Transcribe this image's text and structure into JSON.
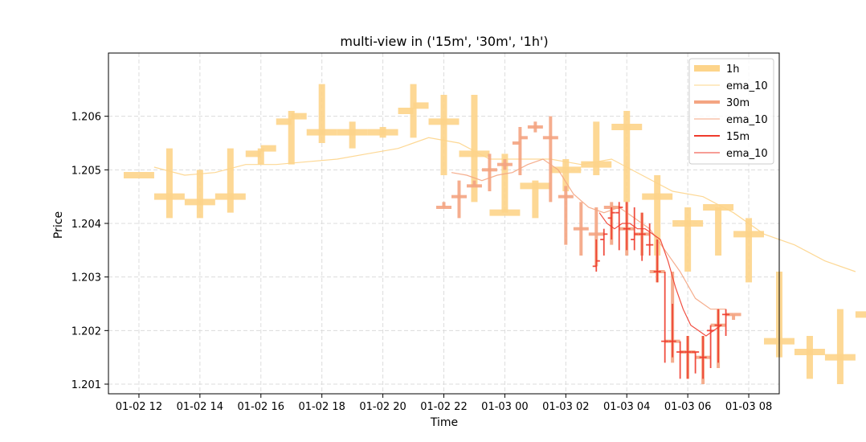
{
  "chart_data": {
    "type": "candlestick-line",
    "title": "multi-view in ('15m', '30m', '1h')",
    "xlabel": "Time",
    "ylabel": "Price",
    "x_tick_labels": [
      "01-02 12",
      "01-02 14",
      "01-02 16",
      "01-02 18",
      "01-02 20",
      "01-02 22",
      "01-03 00",
      "01-03 02",
      "01-03 04",
      "01-03 06",
      "01-03 08"
    ],
    "x_ticks_hours": [
      0,
      2,
      4,
      6,
      8,
      10,
      12,
      14,
      16,
      18,
      20
    ],
    "x_origin": "01-02 12:00",
    "y_ticks": [
      1.201,
      1.202,
      1.203,
      1.204,
      1.205,
      1.206
    ],
    "y_tick_labels": [
      "1.201",
      "1.202",
      "1.203",
      "1.204",
      "1.205",
      "1.206"
    ],
    "xlim_hours": [
      -1.0,
      21.0
    ],
    "ylim": [
      1.20082,
      1.20718
    ],
    "grid": true,
    "legend_position": "top-right",
    "series": [
      {
        "name": "1h",
        "color": "#fdd48a",
        "ohlc": [
          [
            0,
            1.2049,
            1.2049,
            1.2049,
            1.2049
          ],
          [
            1,
            1.2045,
            1.2054,
            1.2041,
            1.2045
          ],
          [
            2,
            1.2044,
            1.205,
            1.2041,
            1.2044
          ],
          [
            3,
            1.2045,
            1.2054,
            1.2042,
            1.2045
          ],
          [
            4,
            1.2053,
            1.2054,
            1.2051,
            1.2054
          ],
          [
            5,
            1.2059,
            1.2061,
            1.2051,
            1.206
          ],
          [
            6,
            1.2057,
            1.2066,
            1.2055,
            1.2057
          ],
          [
            7,
            1.2057,
            1.2059,
            1.2054,
            1.2057
          ],
          [
            8,
            1.2057,
            1.2058,
            1.2056,
            1.2057
          ],
          [
            9,
            1.2061,
            1.2066,
            1.2056,
            1.2062
          ],
          [
            10,
            1.2059,
            1.2064,
            1.2049,
            1.2059
          ],
          [
            11,
            1.2053,
            1.2064,
            1.2044,
            1.2053
          ],
          [
            12,
            1.2042,
            1.2053,
            1.2042,
            1.2042
          ],
          [
            13,
            1.2047,
            1.2048,
            1.2041,
            1.2047
          ],
          [
            14,
            1.205,
            1.2052,
            1.2046,
            1.205
          ],
          [
            15,
            1.2051,
            1.2059,
            1.2049,
            1.2051
          ],
          [
            16,
            1.2058,
            1.2061,
            1.2044,
            1.2058
          ],
          [
            17,
            1.2045,
            1.2049,
            1.2034,
            1.2045
          ],
          [
            18,
            1.204,
            1.2043,
            1.2031,
            1.204
          ],
          [
            19,
            1.2043,
            1.2043,
            1.2034,
            1.2043
          ],
          [
            20,
            1.2038,
            1.2041,
            1.2029,
            1.2038
          ],
          [
            21,
            1.2018,
            1.2031,
            1.2015,
            1.2018
          ],
          [
            22,
            1.2016,
            1.2019,
            1.2011,
            1.2016
          ],
          [
            23,
            1.2015,
            1.2024,
            1.201,
            1.2015
          ],
          [
            24,
            1.2023,
            1.2024,
            1.2021,
            1.2023
          ]
        ]
      },
      {
        "name": "ema_10",
        "color": "#fdd48a",
        "x": [
          0.5,
          1.5,
          2.5,
          3.5,
          4.5,
          5.5,
          6.5,
          7.5,
          8.5,
          9.5,
          10.5,
          11.5,
          12.5,
          13.5,
          14.5,
          15.5,
          16.5,
          17.5,
          18.5,
          19.5,
          20.5,
          21.5,
          22.5,
          23.5
        ],
        "y": [
          1.20505,
          1.2049,
          1.20495,
          1.2051,
          1.2051,
          1.20515,
          1.2052,
          1.2053,
          1.2054,
          1.2056,
          1.2055,
          1.2052,
          1.2052,
          1.2052,
          1.2051,
          1.2052,
          1.2049,
          1.2046,
          1.2045,
          1.2042,
          1.2038,
          1.2036,
          1.2033,
          1.2031
        ]
      },
      {
        "name": "30m",
        "color": "#f4a582",
        "ohlc": [
          [
            10,
            1.2043,
            1.2044,
            1.2043,
            1.2043
          ],
          [
            10.5,
            1.2045,
            1.2048,
            1.2041,
            1.2045
          ],
          [
            11,
            1.2047,
            1.2048,
            1.2047,
            1.2047
          ],
          [
            11.5,
            1.205,
            1.2053,
            1.2046,
            1.205
          ],
          [
            12,
            1.2051,
            1.2052,
            1.205,
            1.2051
          ],
          [
            12.5,
            1.2055,
            1.2058,
            1.2049,
            1.2056
          ],
          [
            13,
            1.2058,
            1.2059,
            1.2057,
            1.2058
          ],
          [
            13.5,
            1.2056,
            1.206,
            1.2044,
            1.2056
          ],
          [
            14,
            1.2045,
            1.2047,
            1.2036,
            1.2045
          ],
          [
            14.5,
            1.2039,
            1.2044,
            1.2034,
            1.2039
          ],
          [
            15,
            1.2038,
            1.2043,
            1.2032,
            1.2038
          ],
          [
            15.5,
            1.2043,
            1.2044,
            1.2036,
            1.2043
          ],
          [
            16,
            1.2039,
            1.2044,
            1.2034,
            1.2039
          ],
          [
            16.5,
            1.2038,
            1.2042,
            1.2034,
            1.2038
          ],
          [
            17,
            1.2031,
            1.2037,
            1.2029,
            1.2031
          ],
          [
            17.5,
            1.2018,
            1.2031,
            1.2014,
            1.2018
          ],
          [
            18,
            1.2016,
            1.2019,
            1.2011,
            1.2016
          ],
          [
            18.5,
            1.2015,
            1.2019,
            1.201,
            1.2015
          ],
          [
            19,
            1.2021,
            1.2024,
            1.2013,
            1.2021
          ],
          [
            19.5,
            1.2023,
            1.2023,
            1.2022,
            1.2023
          ]
        ]
      },
      {
        "name": "ema_10",
        "color": "#f4a582",
        "x": [
          10.25,
          10.75,
          11.25,
          11.75,
          12.25,
          12.75,
          13.25,
          13.75,
          14.25,
          14.75,
          15.25,
          15.75,
          16.25,
          16.75,
          17.25,
          17.75,
          18.25,
          18.75,
          19.25
        ],
        "y": [
          1.20495,
          1.2049,
          1.2048,
          1.2049,
          1.20495,
          1.2051,
          1.2052,
          1.205,
          1.20455,
          1.2043,
          1.2042,
          1.2043,
          1.2041,
          1.2039,
          1.2035,
          1.2031,
          1.2026,
          1.2024,
          1.2024
        ]
      },
      {
        "name": "15m",
        "color": "#ef3b2c",
        "ohlc": [
          [
            15,
            1.2032,
            1.2037,
            1.2031,
            1.2033
          ],
          [
            15.25,
            1.2037,
            1.2039,
            1.2034,
            1.2038
          ],
          [
            15.5,
            1.2041,
            1.2043,
            1.2037,
            1.2042
          ],
          [
            15.75,
            1.2042,
            1.2044,
            1.2035,
            1.2043
          ],
          [
            16,
            1.2039,
            1.2044,
            1.2035,
            1.2039
          ],
          [
            16.25,
            1.2037,
            1.2043,
            1.2035,
            1.2038
          ],
          [
            16.5,
            1.2038,
            1.2042,
            1.2033,
            1.2038
          ],
          [
            16.75,
            1.2036,
            1.204,
            1.2034,
            1.2036
          ],
          [
            17,
            1.2031,
            1.2037,
            1.2029,
            1.2031
          ],
          [
            17.25,
            1.2018,
            1.2031,
            1.2014,
            1.2018
          ],
          [
            17.5,
            1.2018,
            1.2025,
            1.2015,
            1.2018
          ],
          [
            17.75,
            1.2016,
            1.2018,
            1.2011,
            1.2016
          ],
          [
            18,
            1.2016,
            1.2019,
            1.2011,
            1.2016
          ],
          [
            18.25,
            1.2016,
            1.2016,
            1.2012,
            1.2016
          ],
          [
            18.5,
            1.2015,
            1.2019,
            1.2011,
            1.2015
          ],
          [
            18.75,
            1.202,
            1.2021,
            1.2013,
            1.202
          ],
          [
            19,
            1.2021,
            1.2024,
            1.2014,
            1.2021
          ],
          [
            19.25,
            1.2023,
            1.2024,
            1.2019,
            1.2023
          ]
        ]
      },
      {
        "name": "ema_10",
        "color": "#ef3b2c",
        "x": [
          15.1,
          15.35,
          15.6,
          15.85,
          16.1,
          16.35,
          16.6,
          16.85,
          17.1,
          17.35,
          17.6,
          17.85,
          18.1,
          18.35,
          18.6,
          18.85,
          19.1
        ],
        "y": [
          1.2042,
          1.204,
          1.2039,
          1.204,
          1.204,
          1.2039,
          1.2039,
          1.2038,
          1.2037,
          1.2033,
          1.2028,
          1.2024,
          1.2021,
          1.202,
          1.2019,
          1.202,
          1.2021
        ]
      }
    ]
  }
}
